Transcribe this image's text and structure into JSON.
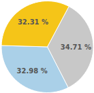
{
  "chart_data": {
    "type": "pie",
    "categories": [
      "34.71 %",
      "32.98 %",
      "32.31 %"
    ],
    "values": [
      34.71,
      32.98,
      32.31
    ],
    "colors": [
      "#c8c8c8",
      "#aad0e8",
      "#f5c518"
    ]
  }
}
